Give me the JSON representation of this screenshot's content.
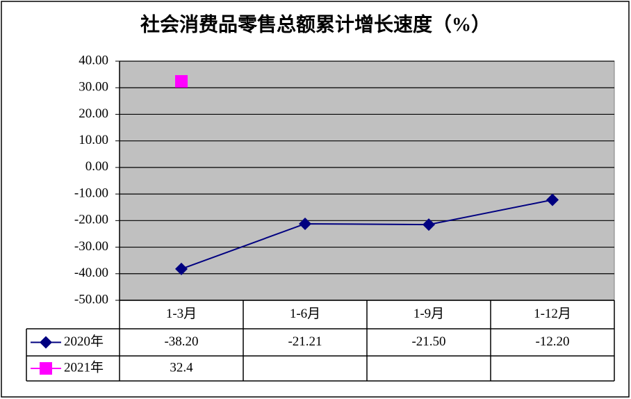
{
  "chart_data": {
    "type": "line",
    "title": "社会消费品零售总额累计增长速度（%）",
    "categories": [
      "1-3月",
      "1-6月",
      "1-9月",
      "1-12月"
    ],
    "series": [
      {
        "name": "2020年",
        "color": "#000080",
        "marker": "diamond",
        "values": [
          -38.2,
          -21.21,
          -21.5,
          -12.2
        ],
        "value_labels": [
          "-38.20",
          "-21.21",
          "-21.50",
          "-12.20"
        ]
      },
      {
        "name": "2021年",
        "color": "#ff00ff",
        "marker": "square",
        "values": [
          32.4,
          null,
          null,
          null
        ]
      }
    ],
    "ylim": [
      -50,
      40
    ],
    "yticks": [
      {
        "value": -50,
        "label": "-50.00"
      },
      {
        "value": -40,
        "label": "-40.00"
      },
      {
        "value": -30,
        "label": "-30.00"
      },
      {
        "value": -20,
        "label": "-20.00"
      },
      {
        "value": -10,
        "label": "-10.00"
      },
      {
        "value": 0,
        "label": "0.00"
      },
      {
        "value": 10,
        "label": "10.00"
      },
      {
        "value": 20,
        "label": "20.00"
      },
      {
        "value": 30,
        "label": "30.00"
      },
      {
        "value": 40,
        "label": "40.00"
      }
    ],
    "grid": true,
    "plot_background": "#c0c0c0",
    "data_table": true
  }
}
